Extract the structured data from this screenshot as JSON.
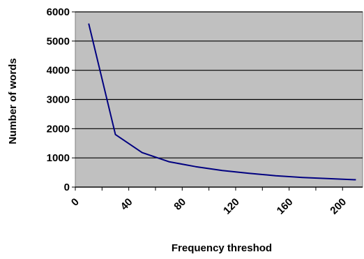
{
  "chart_data": {
    "type": "line",
    "xlabel": "Frequency threshod",
    "ylabel": "Number of words",
    "xlim": [
      0,
      215
    ],
    "ylim": [
      0,
      6000
    ],
    "x_ticks": [
      0,
      40,
      80,
      120,
      160,
      200
    ],
    "y_ticks": [
      0,
      1000,
      2000,
      3000,
      4000,
      5000,
      6000
    ],
    "grid": "horizontal",
    "plot_background": "#c0c0c0",
    "series": [
      {
        "color": "#000080",
        "x": [
          10,
          30,
          50,
          70,
          90,
          110,
          130,
          150,
          170,
          190,
          210
        ],
        "y": [
          5600,
          1800,
          1180,
          870,
          700,
          570,
          470,
          390,
          330,
          290,
          250
        ]
      }
    ]
  }
}
